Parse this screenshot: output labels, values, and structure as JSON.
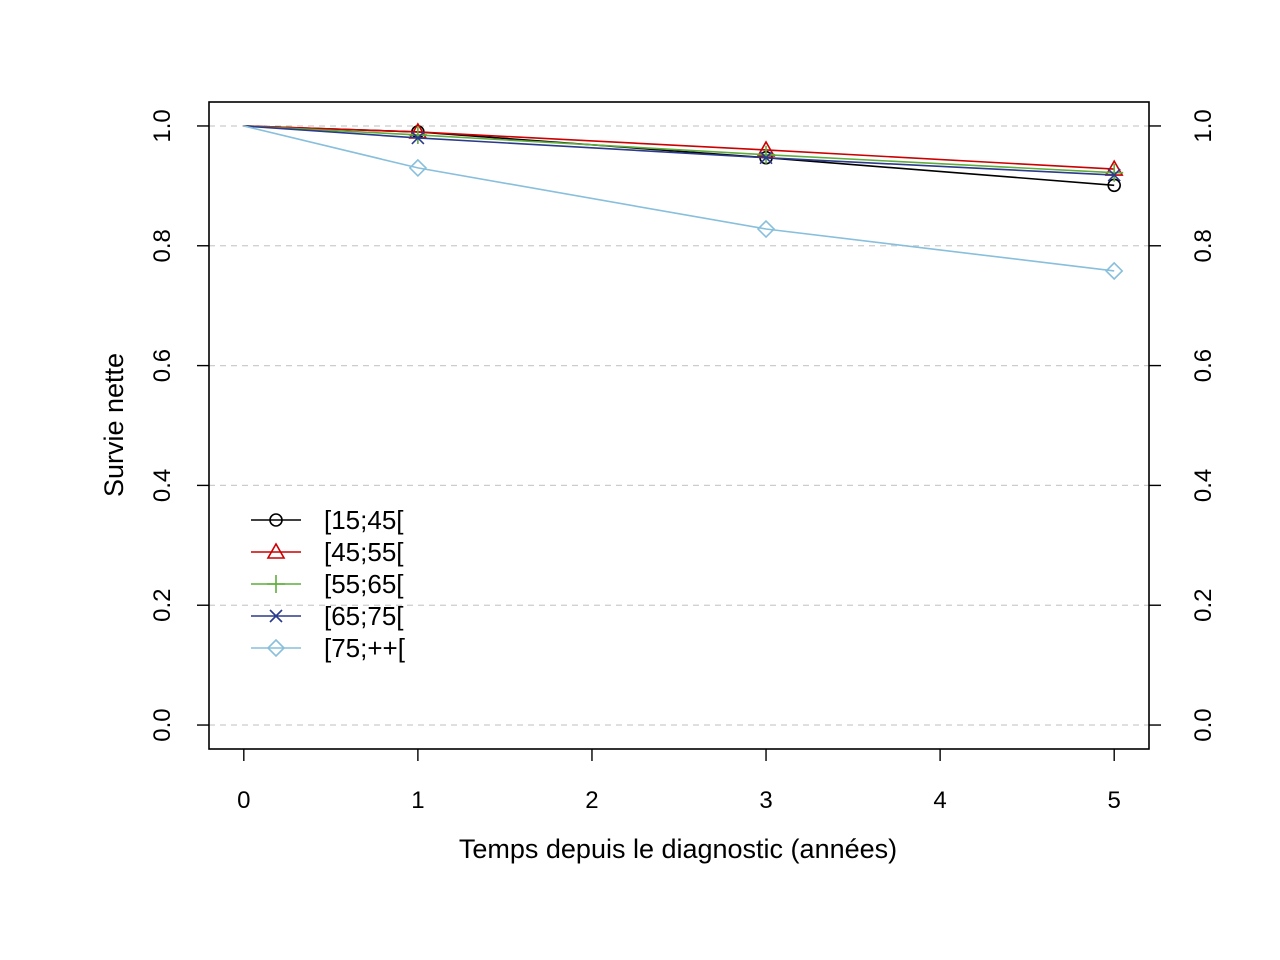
{
  "chart_data": {
    "type": "line",
    "xlabel": "Temps depuis le diagnostic (années)",
    "ylabel": "Survie nette",
    "xlim": [
      -0.2,
      5.2
    ],
    "ylim": [
      -0.04,
      1.04
    ],
    "x_ticks": [
      "0",
      "1",
      "2",
      "3",
      "4",
      "5"
    ],
    "y_ticks": [
      "0.0",
      "0.2",
      "0.4",
      "0.6",
      "0.8",
      "1.0"
    ],
    "y_ticks_right": [
      "0.0",
      "0.2",
      "0.4",
      "0.6",
      "0.8",
      "1.0"
    ],
    "grid": "horizontal dashed",
    "legend_position": "left",
    "series": [
      {
        "name": "[15;45[",
        "color": "#000000",
        "marker": "circle",
        "x": [
          0,
          1,
          3,
          5
        ],
        "values": [
          1.0,
          0.99,
          0.947,
          0.901
        ]
      },
      {
        "name": "[45;55[",
        "color": "#cc0000",
        "marker": "triangle",
        "x": [
          0,
          1,
          3,
          5
        ],
        "values": [
          1.0,
          0.99,
          0.96,
          0.928
        ]
      },
      {
        "name": "[55;65[",
        "color": "#5fae3b",
        "marker": "plus",
        "x": [
          0,
          1,
          3,
          5
        ],
        "values": [
          1.0,
          0.985,
          0.952,
          0.922
        ]
      },
      {
        "name": "[65;75[",
        "color": "#2b3a8c",
        "marker": "cross",
        "x": [
          0,
          1,
          3,
          5
        ],
        "values": [
          1.0,
          0.98,
          0.947,
          0.918
        ]
      },
      {
        "name": "[75;++[",
        "color": "#87bfdc",
        "marker": "diamond",
        "x": [
          0,
          1,
          3,
          5
        ],
        "values": [
          1.0,
          0.93,
          0.828,
          0.758
        ]
      }
    ]
  }
}
